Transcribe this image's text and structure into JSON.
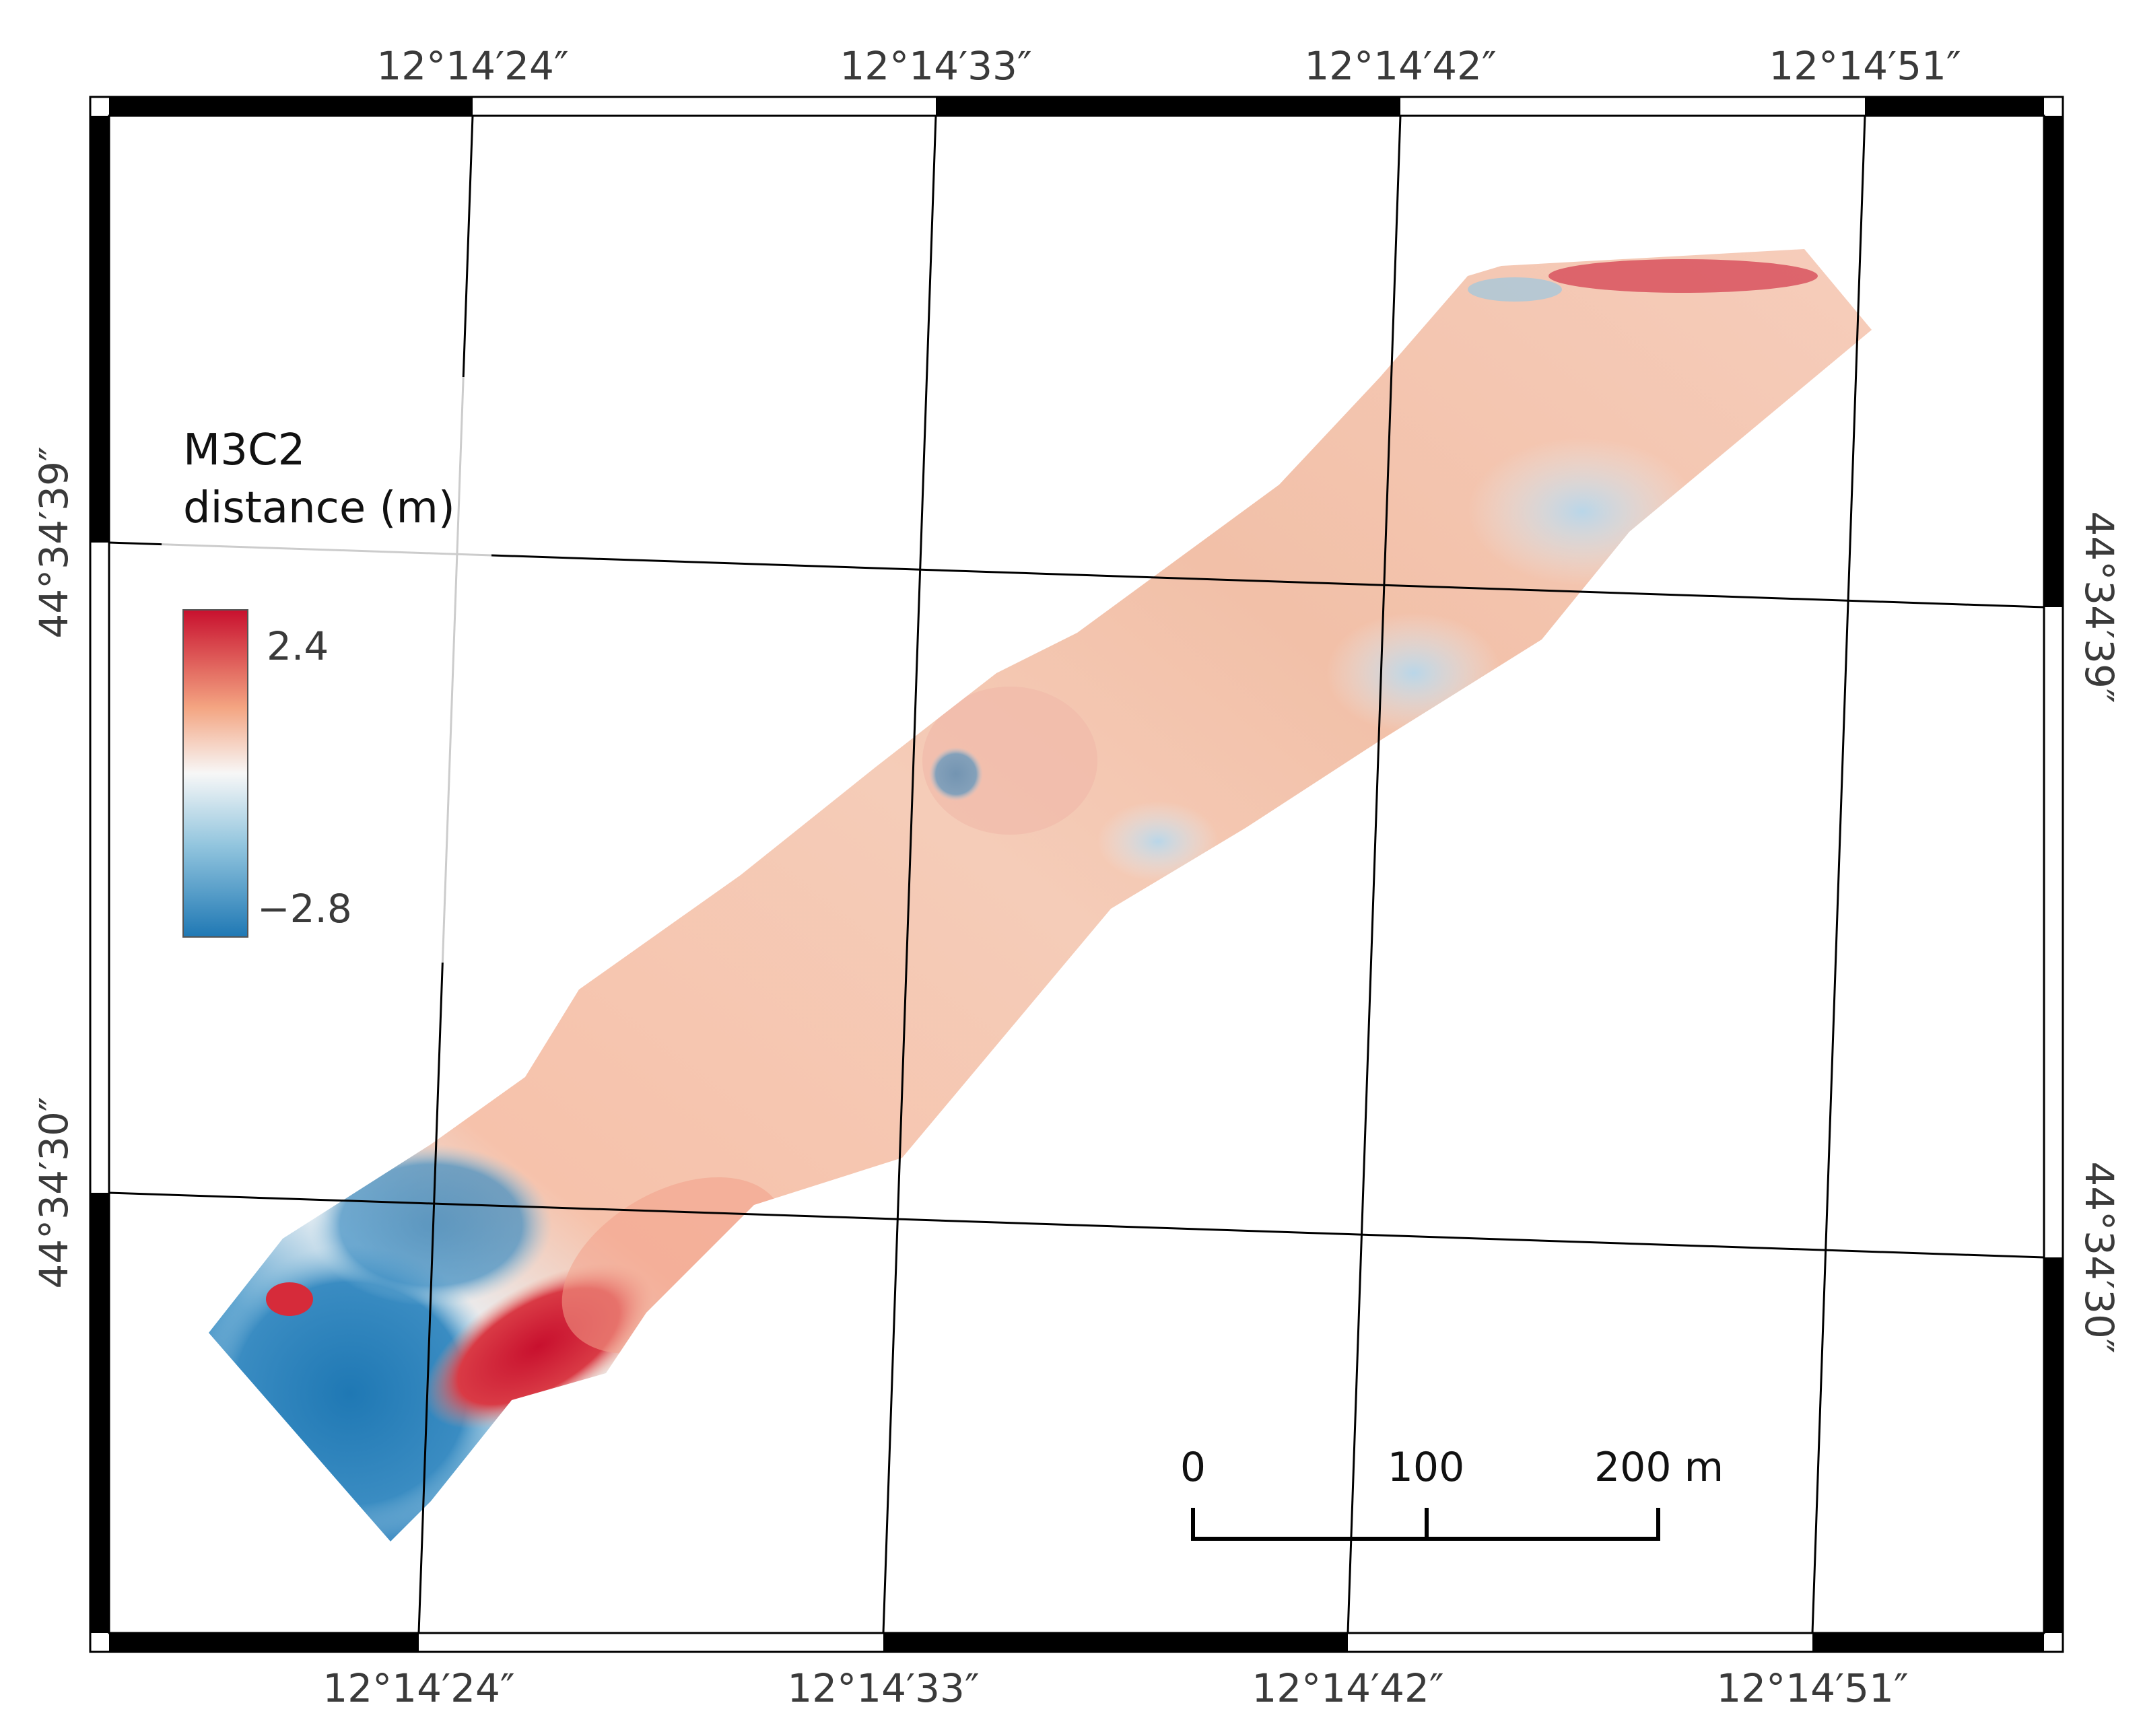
{
  "map": {
    "type": "raster-difference-map",
    "legend": {
      "title_line1": "M3C2",
      "title_line2": "distance (m)",
      "max_label": "2.4",
      "min_label": "−2.8",
      "max_value": 2.4,
      "min_value": -2.8,
      "colors": {
        "high": "#c8102e",
        "mid_high": "#f4a582",
        "mid": "#f7f7f7",
        "mid_low": "#92c5de",
        "low": "#1f78b4"
      }
    },
    "longitude_labels": {
      "top": [
        "12°14′24″",
        "12°14′33″",
        "12°14′42″",
        "12°14′51″"
      ],
      "bottom": [
        "12°14′24″",
        "12°14′33″",
        "12°14′42″",
        "12°14′51″"
      ]
    },
    "latitude_labels": {
      "left": [
        "44°34′39″",
        "44°34′30″"
      ],
      "right": [
        "44°34′39″",
        "44°34′30″"
      ]
    },
    "scale_bar": {
      "labels": [
        "0",
        "100",
        "200 m"
      ],
      "ticks_m": [
        0,
        100,
        200
      ]
    }
  }
}
